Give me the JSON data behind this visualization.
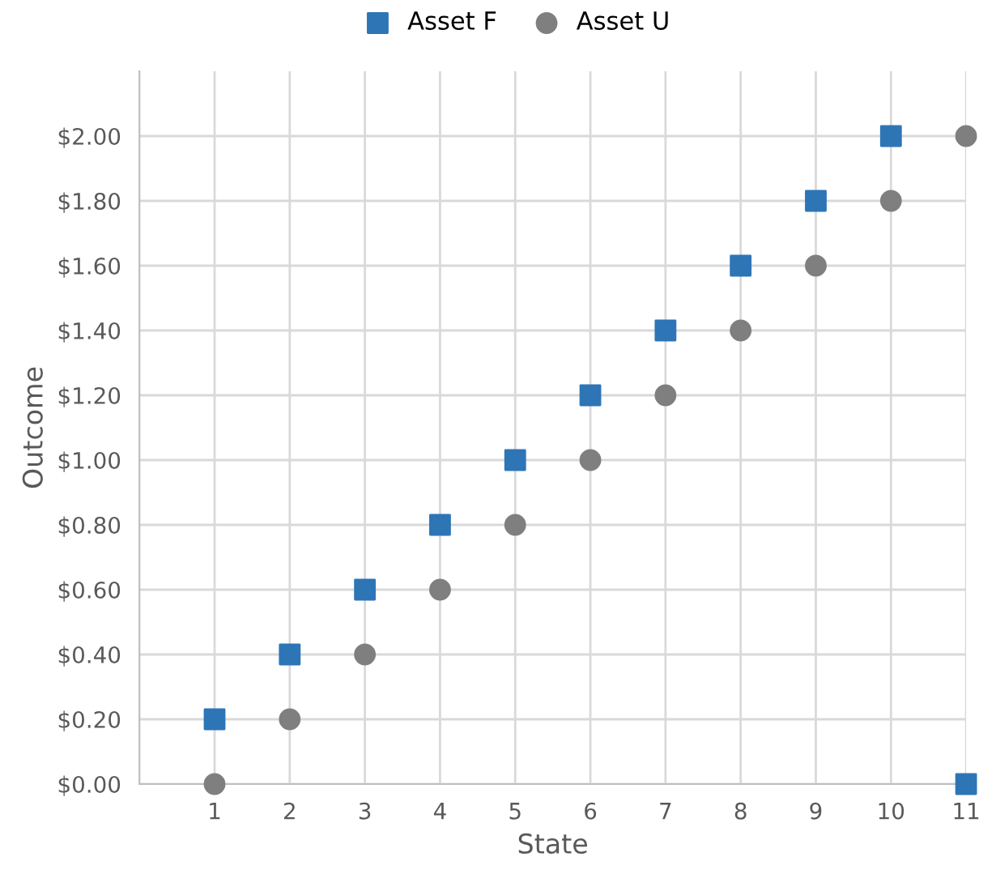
{
  "chart_data": {
    "type": "scatter",
    "xlabel": "State",
    "ylabel": "Outcome",
    "x": [
      1,
      2,
      3,
      4,
      5,
      6,
      7,
      8,
      9,
      10,
      11
    ],
    "series": [
      {
        "name": "Asset F",
        "color": "#2e75b6",
        "marker": "square",
        "values": [
          0.2,
          0.4,
          0.6,
          0.8,
          1.0,
          1.2,
          1.4,
          1.6,
          1.8,
          2.0,
          0.0
        ]
      },
      {
        "name": "Asset U",
        "color": "#7f7f7f",
        "marker": "circle",
        "values": [
          0.0,
          0.2,
          0.4,
          0.6,
          0.8,
          1.0,
          1.2,
          1.4,
          1.6,
          1.8,
          2.0
        ]
      }
    ],
    "xlim": [
      0,
      11
    ],
    "xticks": [
      1,
      2,
      3,
      4,
      5,
      6,
      7,
      8,
      9,
      10,
      11
    ],
    "ylim": [
      0,
      2.2
    ],
    "yticks": [
      {
        "value": 0,
        "label": "$0.00"
      },
      {
        "value": 0.2,
        "label": "$0.20"
      },
      {
        "value": 0.4,
        "label": "$0.40"
      },
      {
        "value": 0.6,
        "label": "$0.60"
      },
      {
        "value": 0.8,
        "label": "$0.80"
      },
      {
        "value": 1.0,
        "label": "$1.00"
      },
      {
        "value": 1.2,
        "label": "$1.20"
      },
      {
        "value": 1.4,
        "label": "$1.40"
      },
      {
        "value": 1.6,
        "label": "$1.60"
      },
      {
        "value": 1.8,
        "label": "$1.80"
      },
      {
        "value": 2.0,
        "label": "$2.00"
      }
    ],
    "grid": true,
    "legend": "top"
  }
}
